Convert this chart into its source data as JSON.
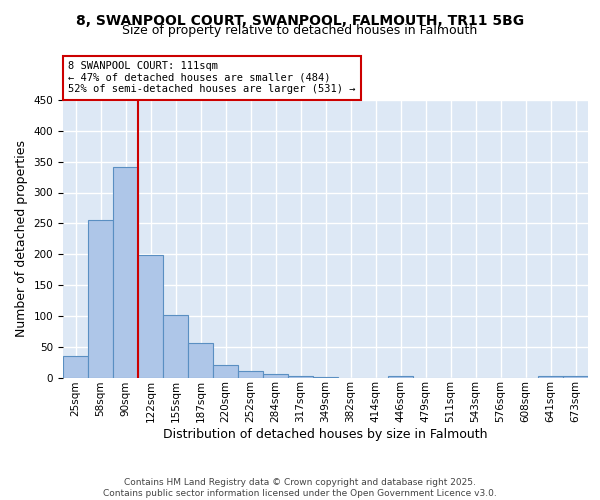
{
  "title1": "8, SWANPOOL COURT, SWANPOOL, FALMOUTH, TR11 5BG",
  "title2": "Size of property relative to detached houses in Falmouth",
  "xlabel": "Distribution of detached houses by size in Falmouth",
  "ylabel": "Number of detached properties",
  "categories": [
    "25sqm",
    "58sqm",
    "90sqm",
    "122sqm",
    "155sqm",
    "187sqm",
    "220sqm",
    "252sqm",
    "284sqm",
    "317sqm",
    "349sqm",
    "382sqm",
    "414sqm",
    "446sqm",
    "479sqm",
    "511sqm",
    "543sqm",
    "576sqm",
    "608sqm",
    "641sqm",
    "673sqm"
  ],
  "values": [
    35,
    255,
    342,
    199,
    102,
    56,
    20,
    10,
    6,
    3,
    1,
    0,
    0,
    3,
    0,
    0,
    0,
    0,
    0,
    3,
    3
  ],
  "bar_color": "#aec6e8",
  "bar_edge_color": "#5a8fc2",
  "vline_color": "#cc0000",
  "annotation_text": "8 SWANPOOL COURT: 111sqm\n← 47% of detached houses are smaller (484)\n52% of semi-detached houses are larger (531) →",
  "annotation_box_color": "#ffffff",
  "annotation_box_edge": "#cc0000",
  "background_color": "#dde8f5",
  "grid_color": "#ffffff",
  "footer_text": "Contains HM Land Registry data © Crown copyright and database right 2025.\nContains public sector information licensed under the Open Government Licence v3.0.",
  "ylim": [
    0,
    450
  ],
  "title_fontsize": 10,
  "subtitle_fontsize": 9,
  "axis_label_fontsize": 9,
  "tick_fontsize": 7.5,
  "footer_fontsize": 6.5
}
